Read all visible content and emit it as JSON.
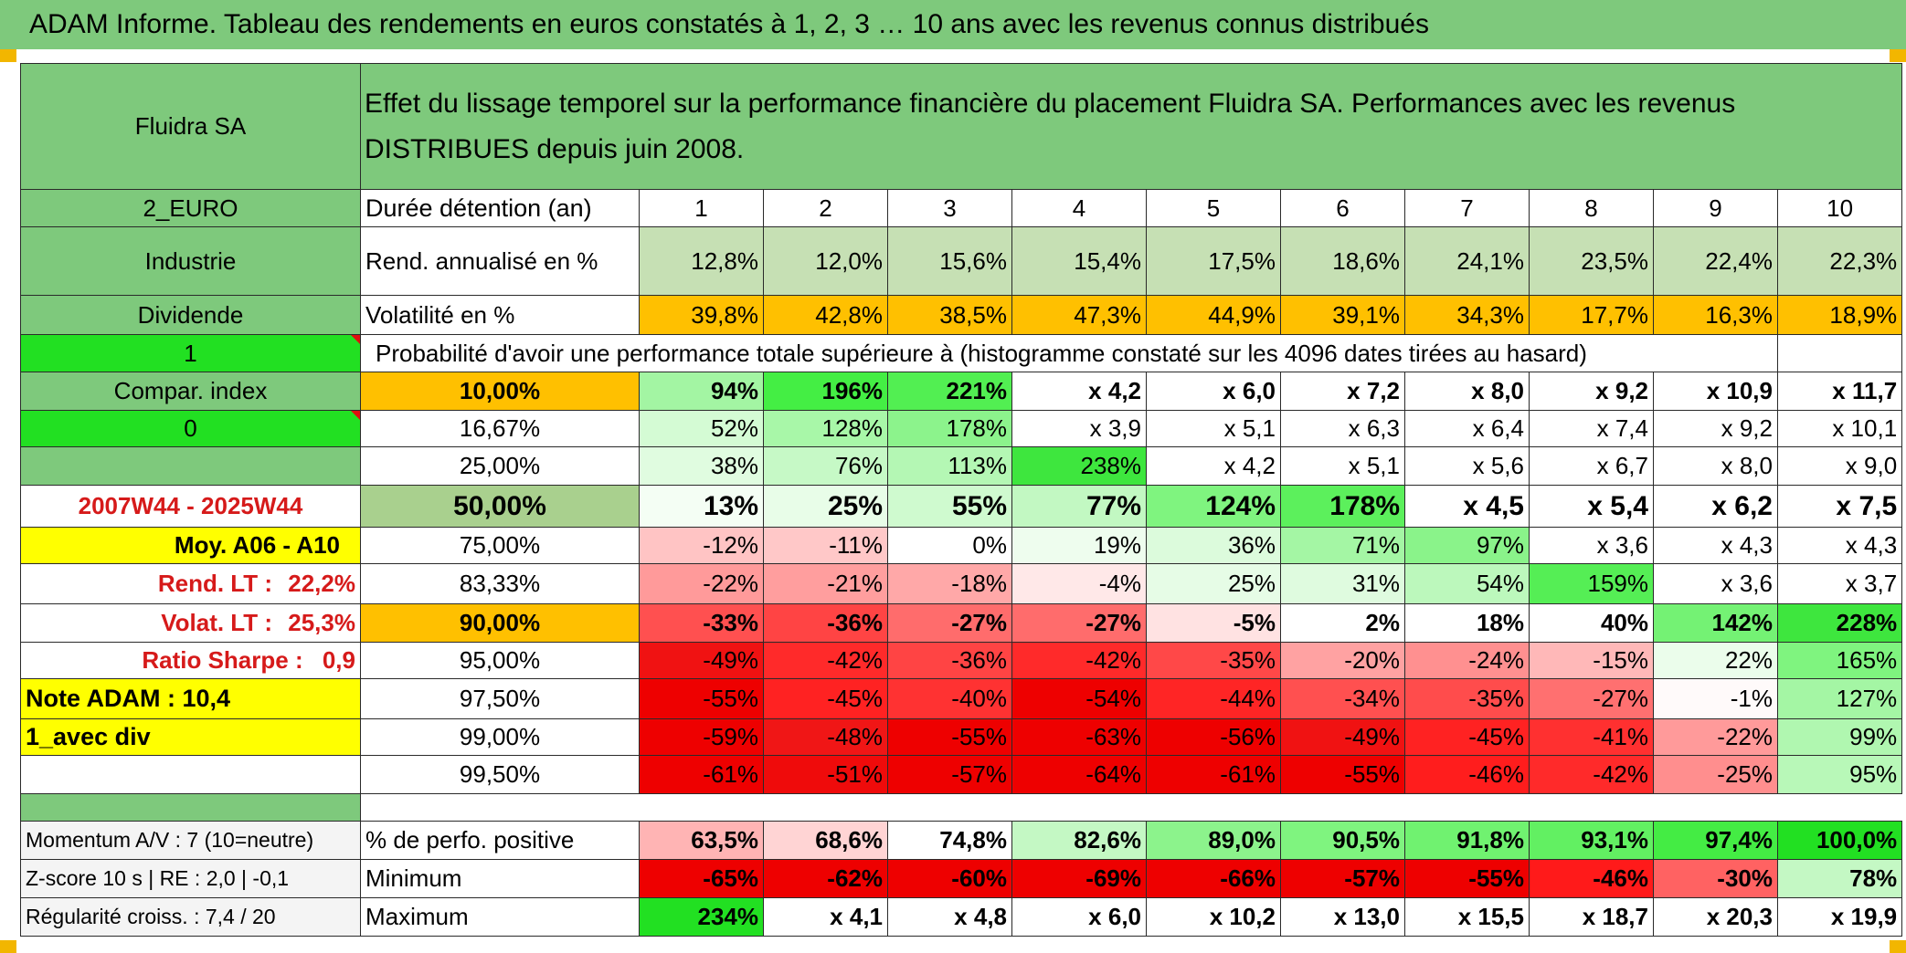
{
  "header": {
    "title": "ADAM Informe. Tableau des rendements en euros constatés à 1, 2, 3 … 10 ans avec les revenus connus distribués"
  },
  "left": {
    "fund_name": "Fluidra SA",
    "currency": "2_EURO",
    "sector": "Industrie",
    "income_type": "Dividende",
    "value_1": "1",
    "compar_index": "Compar. index",
    "value_0": "0",
    "period": "2007W44 - 2025W44",
    "moy": "Moy. A06 - A10",
    "rend_lt_label": "Rend. LT :",
    "rend_lt_value": "22,2%",
    "volat_lt_label": "Volat. LT :",
    "volat_lt_value": "25,3%",
    "sharpe_label": "Ratio Sharpe :",
    "sharpe_value": "0,9",
    "note_adam": "Note ADAM : 10,4",
    "avec_div": "1_avec div",
    "momentum": "Momentum A/V : 7 (10=neutre)",
    "zscore": "Z-score 10 s | RE : 2,0 | -0,1",
    "regularite": "Régularité croiss. : 7,4 / 20"
  },
  "description": "Effet du lissage temporel sur la performance financière du placement Fluidra SA. Performances avec les revenus DISTRIBUES depuis juin 2008.",
  "duration_label": "Durée détention (an)",
  "years": [
    "1",
    "2",
    "3",
    "4",
    "5",
    "6",
    "7",
    "8",
    "9",
    "10"
  ],
  "rend": {
    "label": "Rend. annualisé en %",
    "values": [
      "12,8%",
      "12,0%",
      "15,6%",
      "15,4%",
      "17,5%",
      "18,6%",
      "24,1%",
      "23,5%",
      "22,4%",
      "22,3%"
    ]
  },
  "volat": {
    "label": "Volatilité en %",
    "values": [
      "39,8%",
      "42,8%",
      "38,5%",
      "47,3%",
      "44,9%",
      "39,1%",
      "34,3%",
      "17,7%",
      "16,3%",
      "18,9%"
    ]
  },
  "prob_title": "Probabilité d'avoir une performance totale supérieure à (histogramme constaté sur les 4096 dates tirées au hasard)",
  "prob_rows": [
    {
      "p": "10,00%",
      "bold": true,
      "values": [
        "94%",
        "196%",
        "221%",
        "x 4,2",
        "x 6,0",
        "x 7,2",
        "x 8,0",
        "x 9,2",
        "x 10,9",
        "x 11,7"
      ],
      "colors": [
        "#a3f5a3",
        "#44ee44",
        "#52ef52",
        "#ffffff",
        "#ffffff",
        "#ffffff",
        "#ffffff",
        "#ffffff",
        "#ffffff",
        "#ffffff"
      ]
    },
    {
      "p": "16,67%",
      "bold": false,
      "values": [
        "52%",
        "128%",
        "178%",
        "x 3,9",
        "x 5,1",
        "x 6,3",
        "x 6,4",
        "x 7,4",
        "x 9,2",
        "x 10,1"
      ],
      "colors": [
        "#d4fbd4",
        "#a8f7a8",
        "#8cf38c",
        "#ffffff",
        "#ffffff",
        "#ffffff",
        "#ffffff",
        "#ffffff",
        "#ffffff",
        "#ffffff"
      ]
    },
    {
      "p": "25,00%",
      "bold": false,
      "values": [
        "38%",
        "76%",
        "113%",
        "238%",
        "x 4,2",
        "x 5,1",
        "x 5,6",
        "x 6,7",
        "x 8,0",
        "x 9,0"
      ],
      "colors": [
        "#e0fce0",
        "#c6f9c6",
        "#b4f7b4",
        "#3ee63e",
        "#ffffff",
        "#ffffff",
        "#ffffff",
        "#ffffff",
        "#ffffff",
        "#ffffff"
      ]
    },
    {
      "p": "50,00%",
      "bold": true,
      "big": true,
      "values": [
        "13%",
        "25%",
        "55%",
        "77%",
        "124%",
        "178%",
        "x 4,5",
        "x 5,4",
        "x 6,2",
        "x 7,5"
      ],
      "colors": [
        "#f4fef4",
        "#e8fde8",
        "#cffacf",
        "#c2f8c2",
        "#7ff47f",
        "#5cf05c",
        "#ffffff",
        "#ffffff",
        "#ffffff",
        "#ffffff"
      ]
    },
    {
      "p": "75,00%",
      "bold": false,
      "values": [
        "-12%",
        "-11%",
        "0%",
        "19%",
        "36%",
        "71%",
        "97%",
        "x 3,6",
        "x 4,3",
        "x 4,3"
      ],
      "colors": [
        "#ffc4c4",
        "#ffc8c8",
        "#ffffff",
        "#eefdee",
        "#dcfbdc",
        "#a4f6a4",
        "#8af38a",
        "#ffffff",
        "#ffffff",
        "#ffffff"
      ]
    },
    {
      "p": "83,33%",
      "bold": false,
      "values": [
        "-22%",
        "-21%",
        "-18%",
        "-4%",
        "25%",
        "31%",
        "54%",
        "159%",
        "x 3,6",
        "x 3,7"
      ],
      "colors": [
        "#ff9a9a",
        "#ff9e9e",
        "#ffa8a8",
        "#ffe8e8",
        "#e6fce6",
        "#dffbdf",
        "#bcf8bc",
        "#55ee55",
        "#ffffff",
        "#ffffff"
      ]
    },
    {
      "p": "90,00%",
      "bold": true,
      "values": [
        "-33%",
        "-36%",
        "-27%",
        "-27%",
        "-5%",
        "2%",
        "18%",
        "40%",
        "142%",
        "228%"
      ],
      "colors": [
        "#ff5050",
        "#ff4444",
        "#ff6c6c",
        "#ff6c6c",
        "#ffe2e2",
        "#ffffff",
        "#ffffff",
        "#ffffff",
        "#74f274",
        "#3ee63e"
      ]
    },
    {
      "p": "95,00%",
      "bold": false,
      "values": [
        "-49%",
        "-42%",
        "-36%",
        "-42%",
        "-35%",
        "-20%",
        "-24%",
        "-15%",
        "22%",
        "165%"
      ],
      "colors": [
        "#f01212",
        "#ff2a2a",
        "#ff4444",
        "#ff2a2a",
        "#ff4848",
        "#ffa2a2",
        "#ff9090",
        "#ffb8b8",
        "#ebfdeb",
        "#7ff47f"
      ]
    },
    {
      "p": "97,50%",
      "bold": false,
      "values": [
        "-55%",
        "-45%",
        "-40%",
        "-54%",
        "-44%",
        "-34%",
        "-35%",
        "-27%",
        "-1%",
        "127%"
      ],
      "colors": [
        "#ee0000",
        "#ff2222",
        "#ff3232",
        "#ee0000",
        "#ff2525",
        "#ff5050",
        "#ff4c4c",
        "#ff7070",
        "#fffafa",
        "#a4f6a4"
      ]
    },
    {
      "p": "99,00%",
      "bold": false,
      "values": [
        "-59%",
        "-48%",
        "-55%",
        "-63%",
        "-56%",
        "-49%",
        "-45%",
        "-41%",
        "-22%",
        "99%"
      ],
      "colors": [
        "#ee0000",
        "#f01616",
        "#ee0000",
        "#ee0000",
        "#ee0000",
        "#f01212",
        "#ff2222",
        "#ff3030",
        "#ff9a9a",
        "#b0f7b0"
      ]
    },
    {
      "p": "99,50%",
      "bold": false,
      "values": [
        "-61%",
        "-51%",
        "-57%",
        "-64%",
        "-61%",
        "-55%",
        "-46%",
        "-42%",
        "-25%",
        "95%"
      ],
      "colors": [
        "#ee0000",
        "#ef0b0b",
        "#ee0000",
        "#ee0000",
        "#ee0000",
        "#ee0000",
        "#ff1d1d",
        "#ff2a2a",
        "#ff8e8e",
        "#b8f8b8"
      ]
    }
  ],
  "perf_positive": {
    "label": "% de perfo. positive",
    "values": [
      "63,5%",
      "68,6%",
      "74,8%",
      "82,6%",
      "89,0%",
      "90,5%",
      "91,8%",
      "93,1%",
      "97,4%",
      "100,0%"
    ],
    "colors": [
      "#ffb4b4",
      "#ffd4d4",
      "#ffffff",
      "#c4f8c4",
      "#8cf38c",
      "#7ff47f",
      "#70f270",
      "#62f062",
      "#44ec44",
      "#22e022"
    ]
  },
  "minimum": {
    "label": "Minimum",
    "values": [
      "-65%",
      "-62%",
      "-60%",
      "-69%",
      "-66%",
      "-57%",
      "-55%",
      "-46%",
      "-30%",
      "78%"
    ],
    "colors": [
      "#ee0000",
      "#ee0000",
      "#ee0000",
      "#ee0000",
      "#ee0000",
      "#ee0000",
      "#ee0000",
      "#ff1a1a",
      "#ff6262",
      "#c4f8c4"
    ]
  },
  "maximum": {
    "label": "Maximum",
    "values": [
      "234%",
      "x 4,1",
      "x 4,8",
      "x 6,0",
      "x 10,2",
      "x 13,0",
      "x 15,5",
      "x 18,7",
      "x 20,3",
      "x 19,9"
    ],
    "colors": [
      "#22e022",
      "#ffffff",
      "#ffffff",
      "#ffffff",
      "#ffffff",
      "#ffffff",
      "#ffffff",
      "#ffffff",
      "#ffffff",
      "#ffffff"
    ]
  },
  "colors": {
    "label_green": "#7ec97c",
    "bright_green": "#22e022",
    "rend_bg": "#c6e0b4",
    "orange": "#ffc000",
    "yellow": "#ffff00",
    "red_text": "#d61a1a",
    "p50_bg": "#a9d08e"
  }
}
